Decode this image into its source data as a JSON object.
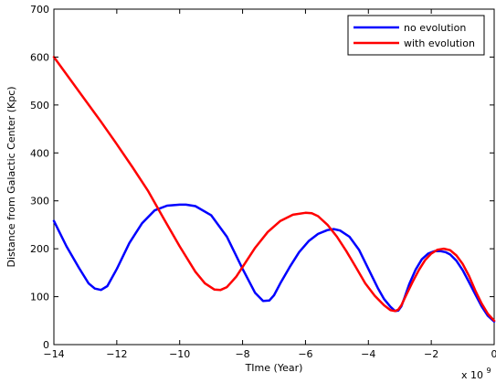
{
  "chart_data": {
    "type": "line",
    "xlabel": "TIme (Year)",
    "ylabel": "Distance from Galactic Center (Kpc)",
    "x_multiplier_label": "x 10",
    "x_multiplier_exponent": "9",
    "xlim": [
      -14,
      0
    ],
    "ylim": [
      0,
      700
    ],
    "xticks": [
      -14,
      -12,
      -10,
      -8,
      -6,
      -4,
      -2,
      0
    ],
    "yticks": [
      0,
      100,
      200,
      300,
      400,
      500,
      600,
      700
    ],
    "xtick_labels": [
      "−14",
      "−12",
      "−10",
      "−8",
      "−6",
      "−4",
      "−2",
      "0"
    ],
    "ytick_labels": [
      "0",
      "100",
      "200",
      "300",
      "400",
      "500",
      "600",
      "700"
    ],
    "grid": false,
    "legend_position": "top-right",
    "series": [
      {
        "name": "no evolution",
        "color": "#0000ff",
        "x": [
          -14,
          -13.6,
          -13.2,
          -12.9,
          -12.7,
          -12.5,
          -12.3,
          -12.0,
          -11.6,
          -11.2,
          -10.8,
          -10.4,
          -10.0,
          -9.8,
          -9.5,
          -9.0,
          -8.5,
          -8.0,
          -7.6,
          -7.35,
          -7.15,
          -7.0,
          -6.8,
          -6.5,
          -6.2,
          -5.9,
          -5.6,
          -5.3,
          -5.1,
          -4.9,
          -4.6,
          -4.3,
          -4.0,
          -3.7,
          -3.5,
          -3.3,
          -3.15,
          -3.05,
          -2.95,
          -2.85,
          -2.7,
          -2.5,
          -2.3,
          -2.1,
          -1.9,
          -1.7,
          -1.55,
          -1.4,
          -1.2,
          -1.0,
          -0.8,
          -0.6,
          -0.4,
          -0.2,
          0.0
        ],
        "y": [
          258,
          205,
          160,
          128,
          117,
          114,
          122,
          158,
          212,
          253,
          280,
          290,
          292,
          292,
          289,
          270,
          225,
          158,
          108,
          91,
          92,
          103,
          128,
          162,
          193,
          216,
          231,
          239,
          241,
          238,
          225,
          198,
          158,
          118,
          95,
          79,
          70,
          71,
          80,
          98,
          126,
          156,
          178,
          190,
          195,
          195,
          193,
          188,
          175,
          155,
          130,
          105,
          80,
          60,
          48
        ]
      },
      {
        "name": "with evolution",
        "color": "#ff0000",
        "x": [
          -14,
          -13.5,
          -13.0,
          -12.5,
          -12.0,
          -11.5,
          -11.0,
          -10.5,
          -10.0,
          -9.5,
          -9.2,
          -8.9,
          -8.7,
          -8.5,
          -8.2,
          -7.9,
          -7.6,
          -7.2,
          -6.8,
          -6.4,
          -6.0,
          -5.8,
          -5.6,
          -5.3,
          -5.0,
          -4.7,
          -4.4,
          -4.1,
          -3.8,
          -3.5,
          -3.3,
          -3.15,
          -3.05,
          -2.95,
          -2.8,
          -2.6,
          -2.4,
          -2.2,
          -2.0,
          -1.8,
          -1.6,
          -1.4,
          -1.2,
          -1.0,
          -0.8,
          -0.6,
          -0.4,
          -0.2,
          0.0
        ],
        "y": [
          600,
          555,
          510,
          465,
          418,
          370,
          320,
          262,
          205,
          152,
          128,
          115,
          114,
          120,
          142,
          172,
          202,
          235,
          258,
          271,
          275,
          274,
          268,
          250,
          225,
          195,
          162,
          128,
          102,
          82,
          72,
          70,
          73,
          82,
          103,
          130,
          155,
          176,
          190,
          198,
          200,
          197,
          186,
          168,
          143,
          113,
          86,
          64,
          50
        ]
      }
    ]
  }
}
